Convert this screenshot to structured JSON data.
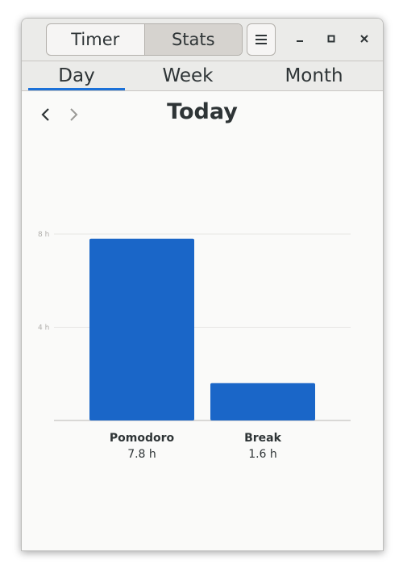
{
  "header": {
    "segments": [
      {
        "label": "Timer",
        "active": false
      },
      {
        "label": "Stats",
        "active": true
      }
    ],
    "menu_icon": "hamburger-menu-icon",
    "window_controls": [
      "minimize-icon",
      "maximize-icon",
      "close-icon"
    ]
  },
  "tabs": [
    {
      "label": "Day",
      "active": true
    },
    {
      "label": "Week",
      "active": false
    },
    {
      "label": "Month",
      "active": false
    }
  ],
  "nav": {
    "title": "Today",
    "prev_icon": "chevron-left-icon",
    "next_icon": "chevron-right-icon"
  },
  "colors": {
    "accent": "#1c71d8",
    "bar": "#1a66c8"
  },
  "chart_data": {
    "type": "bar",
    "categories": [
      "Pomodoro",
      "Break"
    ],
    "values": [
      7.8,
      1.6
    ],
    "value_labels": [
      "7.8 h",
      "1.6 h"
    ],
    "ytick_values": [
      4,
      8
    ],
    "ytick_labels": [
      "4 h",
      "8 h"
    ],
    "ylim": [
      0,
      8
    ],
    "grid": true
  }
}
